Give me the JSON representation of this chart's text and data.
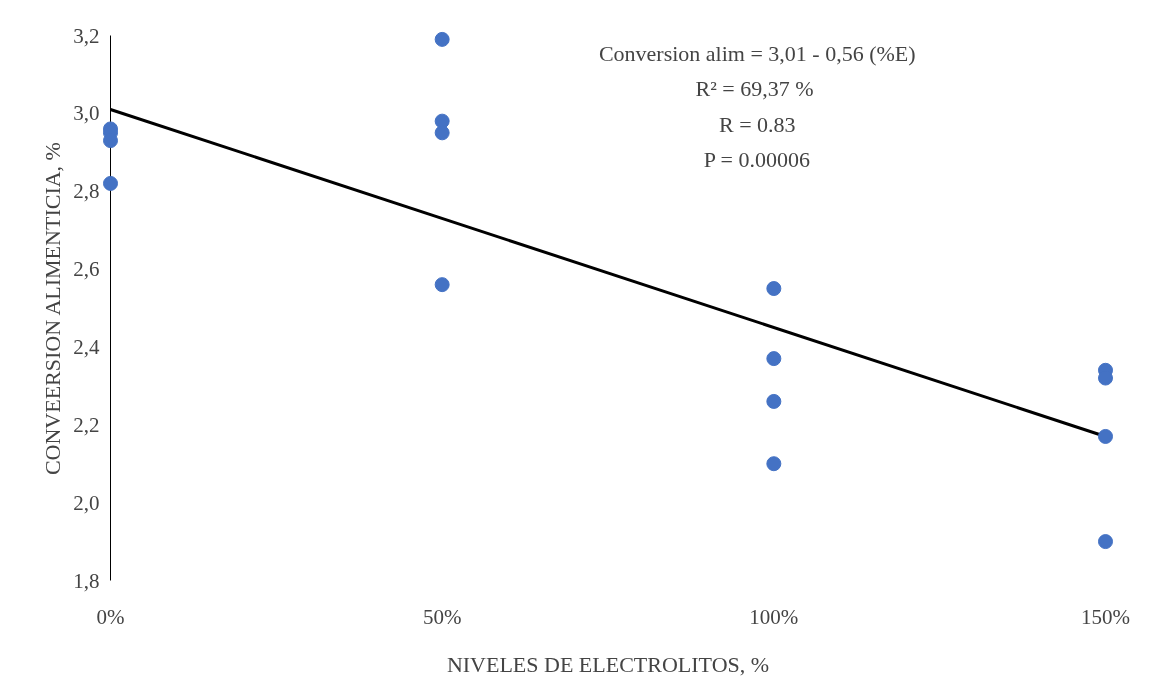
{
  "chart_data": {
    "type": "scatter",
    "xlabel": "NIVELES DE ELECTROLITOS, %",
    "ylabel": "CONVEERSION ALIMENTICIA, %",
    "series": [
      {
        "color": "#4472c4",
        "x": [
          0,
          0,
          0,
          0,
          0.5,
          0.5,
          0.5,
          0.5,
          1,
          1,
          1,
          1,
          1.5,
          1.5,
          1.5,
          1.5
        ],
        "values": [
          2.96,
          2.95,
          2.93,
          2.82,
          3.19,
          2.98,
          2.95,
          2.56,
          2.55,
          2.37,
          2.26,
          2.1,
          2.34,
          2.32,
          2.17,
          1.9
        ]
      },
      {
        "type": "line",
        "marker": "none",
        "color": "#000000",
        "x": [
          0,
          1.5
        ],
        "values": [
          3.01,
          2.17
        ]
      }
    ],
    "xlim": [
      0,
      1.5
    ],
    "ylim": [
      1.8,
      3.2
    ],
    "xticks": [
      {
        "value": 0,
        "label": "0%"
      },
      {
        "value": 0.5,
        "label": "50%"
      },
      {
        "value": 1,
        "label": "100%"
      },
      {
        "value": 1.5,
        "label": "150%"
      }
    ],
    "yticks": [
      {
        "value": 1.8,
        "label": "1,8"
      },
      {
        "value": 2.0,
        "label": "2,0"
      },
      {
        "value": 2.2,
        "label": "2,2"
      },
      {
        "value": 2.4,
        "label": "2,4"
      },
      {
        "value": 2.6,
        "label": "2,6"
      },
      {
        "value": 2.8,
        "label": "2,8"
      },
      {
        "value": 3.0,
        "label": "3,0"
      },
      {
        "value": 3.2,
        "label": "3,2"
      }
    ],
    "annotations": [
      "Conversion alim = 3,01 - 0,56 (%E)",
      "R² =  69,37 %",
      "R = 0.83",
      "P = 0.00006"
    ],
    "marker": "circle",
    "grid": false
  }
}
